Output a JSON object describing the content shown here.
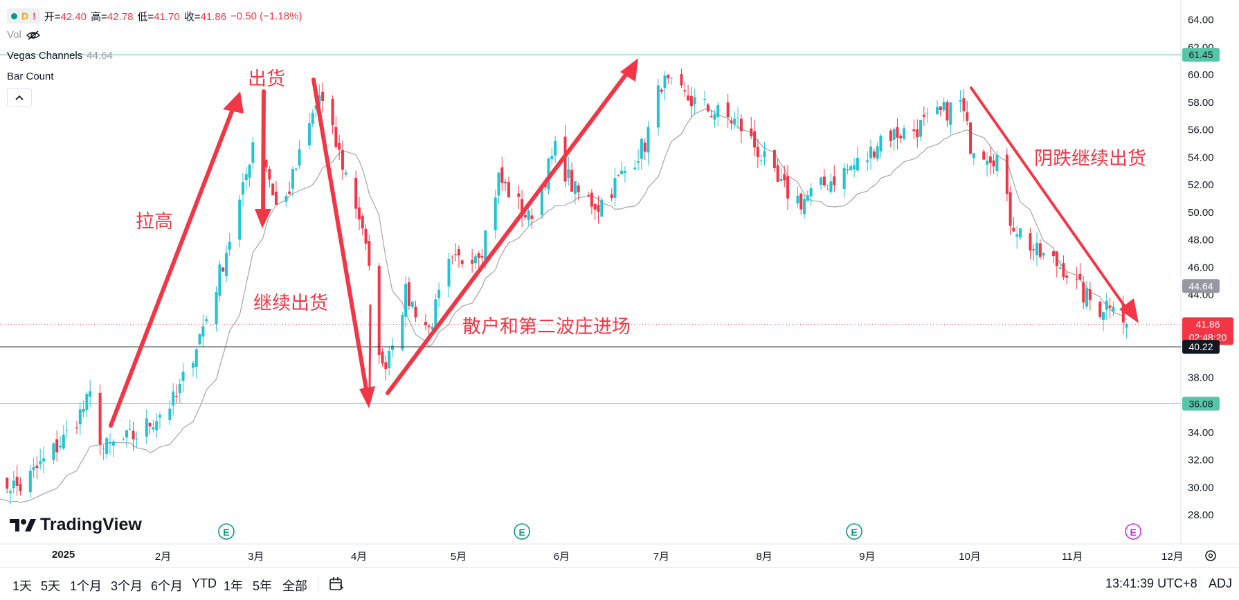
{
  "legend": {
    "symbol_letter": "D",
    "symbol_alert": "!",
    "ohlc": [
      {
        "label": "开=",
        "value": "42.40"
      },
      {
        "label": "高=",
        "value": "42.78"
      },
      {
        "label": "低=",
        "value": "41.70"
      },
      {
        "label": "收=",
        "value": "41.86"
      },
      {
        "label": "",
        "value": "−0.50 (−1.18%)"
      }
    ],
    "vol_label": "Vol",
    "vegas_label": "Vegas Channels",
    "vegas_value": "44.64",
    "bar_count_label": "Bar Count"
  },
  "annotations": {
    "pull_up": "拉高",
    "distribute": "出货",
    "continue_distribute": "继续出货",
    "retail_entry": "散户和第二波庄进场",
    "bearish_distribute": "阴跌继续出货"
  },
  "price_tags": {
    "upper_line": "61.45",
    "vegas": "44.64",
    "last_price": "41.86",
    "countdown": "02:48:20",
    "crosshair": "40.22",
    "lower_line": "36.08"
  },
  "branding": {
    "logo_text": "TradingView"
  },
  "timeframes": [
    "1天",
    "5天",
    "1个月",
    "3个月",
    "6个月",
    "YTD",
    "1年",
    "5年",
    "全部"
  ],
  "status": {
    "time": "13:41:39 UTC+8",
    "adj": "ADJ"
  },
  "earnings_marker": "E",
  "colors": {
    "up": "#22c3d3",
    "down": "#f23645",
    "annotation": "#f23645",
    "hline": "#57c6a6",
    "ma": "#a5a5a5"
  },
  "chart_data": {
    "type": "candlestick",
    "y_ticks": [
      "64.00",
      "62.00",
      "60.00",
      "58.00",
      "56.00",
      "54.00",
      "52.00",
      "50.00",
      "48.00",
      "46.00",
      "44.00",
      "42.00",
      "40.00",
      "38.00",
      "36.00",
      "34.00",
      "32.00",
      "30.00",
      "28.00"
    ],
    "ylim": [
      26.5,
      65
    ],
    "x_labels": [
      {
        "label": "2025",
        "date": "2025-01-01"
      },
      {
        "label": "2月",
        "date": "2025-02-01"
      },
      {
        "label": "3月",
        "date": "2025-03-01"
      },
      {
        "label": "4月",
        "date": "2025-04-01"
      },
      {
        "label": "5月",
        "date": "2025-05-01"
      },
      {
        "label": "6月",
        "date": "2025-06-01"
      },
      {
        "label": "7月",
        "date": "2025-07-01"
      },
      {
        "label": "8月",
        "date": "2025-08-01"
      },
      {
        "label": "9月",
        "date": "2025-09-01"
      },
      {
        "label": "10月",
        "date": "2025-10-01"
      },
      {
        "label": "11月",
        "date": "2025-11-01"
      },
      {
        "label": "12月",
        "date": "2025-12-01"
      }
    ],
    "horizontal_lines": [
      61.45,
      40.22,
      36.08
    ],
    "last_price": 41.86,
    "earnings_dates": [
      "2025-02-20",
      "2025-05-20",
      "2025-08-28",
      "2025-11-20"
    ],
    "waypoints": [
      {
        "date": "2024-12-12",
        "price": 30.5
      },
      {
        "date": "2024-12-20",
        "price": 30.0
      },
      {
        "date": "2025-01-02",
        "price": 33.5
      },
      {
        "date": "2025-01-10",
        "price": 36.5
      },
      {
        "date": "2025-01-14",
        "price": 32.8
      },
      {
        "date": "2025-01-24",
        "price": 33.8
      },
      {
        "date": "2025-02-05",
        "price": 36.5
      },
      {
        "date": "2025-02-15",
        "price": 43.0
      },
      {
        "date": "2025-02-25",
        "price": 51.5
      },
      {
        "date": "2025-03-01",
        "price": 56.5
      },
      {
        "date": "2025-03-08",
        "price": 49.5
      },
      {
        "date": "2025-03-20",
        "price": 58.5
      },
      {
        "date": "2025-03-27",
        "price": 53.5
      },
      {
        "date": "2025-04-02",
        "price": 49.0
      },
      {
        "date": "2025-04-08",
        "price": 38.5
      },
      {
        "date": "2025-04-15",
        "price": 44.0
      },
      {
        "date": "2025-04-22",
        "price": 41.5
      },
      {
        "date": "2025-04-28",
        "price": 46.0
      },
      {
        "date": "2025-05-08",
        "price": 47.5
      },
      {
        "date": "2025-05-13",
        "price": 52.5
      },
      {
        "date": "2025-05-22",
        "price": 49.5
      },
      {
        "date": "2025-05-30",
        "price": 54.5
      },
      {
        "date": "2025-06-05",
        "price": 51.5
      },
      {
        "date": "2025-06-12",
        "price": 50.5
      },
      {
        "date": "2025-06-20",
        "price": 53.0
      },
      {
        "date": "2025-06-26",
        "price": 55.0
      },
      {
        "date": "2025-07-01",
        "price": 59.5
      },
      {
        "date": "2025-07-07",
        "price": 58.5
      },
      {
        "date": "2025-07-15",
        "price": 57.5
      },
      {
        "date": "2025-07-24",
        "price": 56.5
      },
      {
        "date": "2025-07-30",
        "price": 54.5
      },
      {
        "date": "2025-08-05",
        "price": 52.0
      },
      {
        "date": "2025-08-12",
        "price": 50.8
      },
      {
        "date": "2025-08-22",
        "price": 52.5
      },
      {
        "date": "2025-09-01",
        "price": 54.0
      },
      {
        "date": "2025-09-05",
        "price": 55.5
      },
      {
        "date": "2025-09-15",
        "price": 56.0
      },
      {
        "date": "2025-09-22",
        "price": 57.0
      },
      {
        "date": "2025-09-29",
        "price": 58.0
      },
      {
        "date": "2025-10-02",
        "price": 55.0
      },
      {
        "date": "2025-10-10",
        "price": 54.0
      },
      {
        "date": "2025-10-14",
        "price": 49.5
      },
      {
        "date": "2025-10-22",
        "price": 47.0
      },
      {
        "date": "2025-10-30",
        "price": 46.0
      },
      {
        "date": "2025-11-05",
        "price": 44.0
      },
      {
        "date": "2025-11-10",
        "price": 43.0
      },
      {
        "date": "2025-11-14",
        "price": 43.8
      },
      {
        "date": "2025-11-18",
        "price": 41.86
      }
    ]
  }
}
